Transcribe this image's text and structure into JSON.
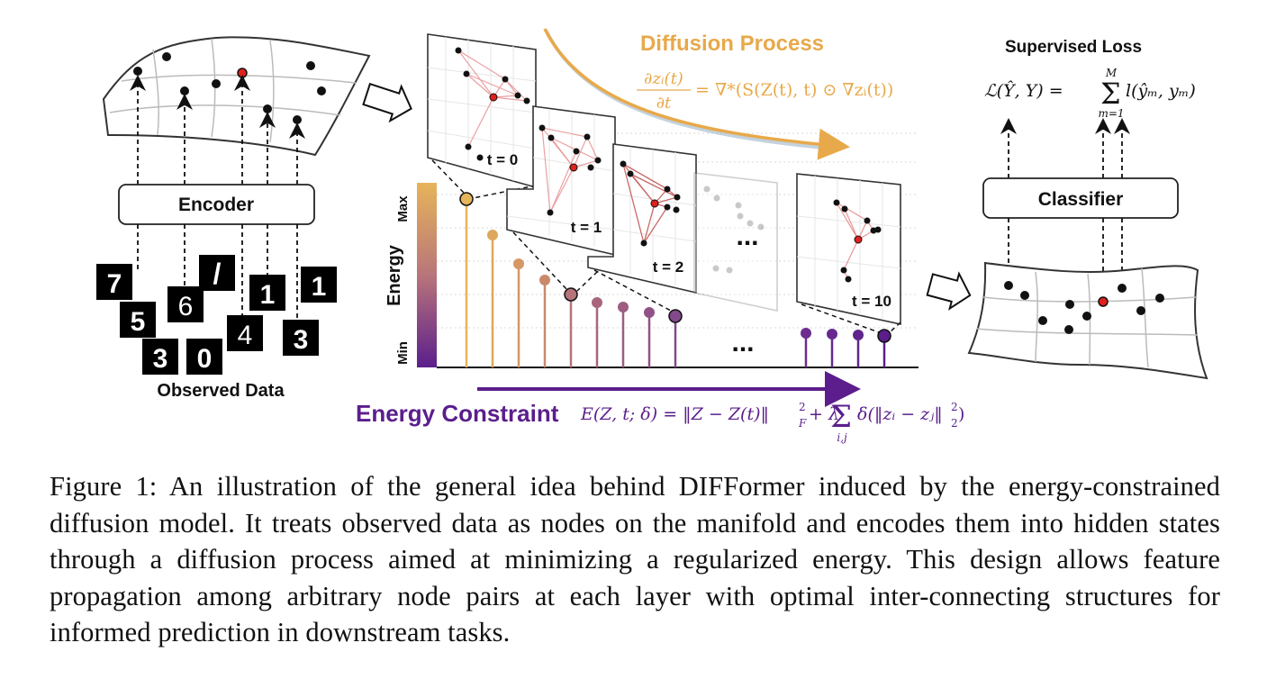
{
  "figure": {
    "labels": {
      "encoder": "Encoder",
      "observed_data": "Observed Data",
      "diffusion_process": "Diffusion Process",
      "supervised_loss": "Supervised Loss",
      "classifier": "Classifier",
      "energy_axis": "Energy",
      "energy_max": "Max",
      "energy_min": "Min",
      "energy_constraint": "Energy Constraint",
      "ellipsis": "..."
    },
    "equations": {
      "diffusion": "∂zᵢ(t)/∂t = ∇*(S(Z(t), t) ⊙ ∇zᵢ(t))",
      "diffusion_lhs_num": "∂zᵢ(t)",
      "diffusion_lhs_den": "∂t",
      "diffusion_rhs": "= ∇*(S(Z(t), t) ⊙ ∇zᵢ(t))",
      "loss": "ℒ(Ŷ, Y) = Σ_{m=1}^{M} l(ŷₘ, yₘ)",
      "loss_lhs": "ℒ(Ŷ, Y) =",
      "loss_sum_top": "M",
      "loss_sum_bottom": "m=1",
      "loss_rhs": "l(ŷₘ, yₘ)",
      "energy": "E(Z, t; δ) = ‖Z − Z(t)‖²_F + λ Σ_{i,j} δ(‖zᵢ − zⱼ‖²₂)",
      "energy_lhs": "E(Z, t; δ) = ‖Z − Z(t)‖",
      "energy_sup": "2",
      "energy_sub": "F",
      "energy_mid": "+ λ",
      "energy_sum_bottom": "i,j",
      "energy_rhs": "δ(‖zᵢ − zⱼ‖",
      "energy_rhs_sup": "2",
      "energy_rhs_sub": "2",
      "energy_rhs_end": ")"
    },
    "time_labels": [
      "t = 0",
      "t = 1",
      "t = 2",
      "t = 10"
    ],
    "digits": [
      {
        "char": "7"
      },
      {
        "char": "5"
      },
      {
        "char": "6"
      },
      {
        "char": "/"
      },
      {
        "char": "3"
      },
      {
        "char": "0"
      },
      {
        "char": "4"
      },
      {
        "char": "1"
      },
      {
        "char": "3"
      },
      {
        "char": "1"
      }
    ],
    "colors": {
      "diffusion": "#E8A94A",
      "energy_constraint": "#5B1E8C",
      "node": "#111111",
      "node_highlight": "#E0201B",
      "edge": "#E6898B"
    }
  },
  "caption": {
    "text": "Figure 1:  An illustration of the general idea behind DIFFormer induced by the energy-constrained diffusion model. It treats observed data as nodes on the manifold and encodes them into hidden states through a diffusion process aimed at minimizing a regularized energy. This design allows feature propagation among arbitrary node pairs at each layer with optimal inter-connecting structures for informed prediction in downstream tasks."
  }
}
